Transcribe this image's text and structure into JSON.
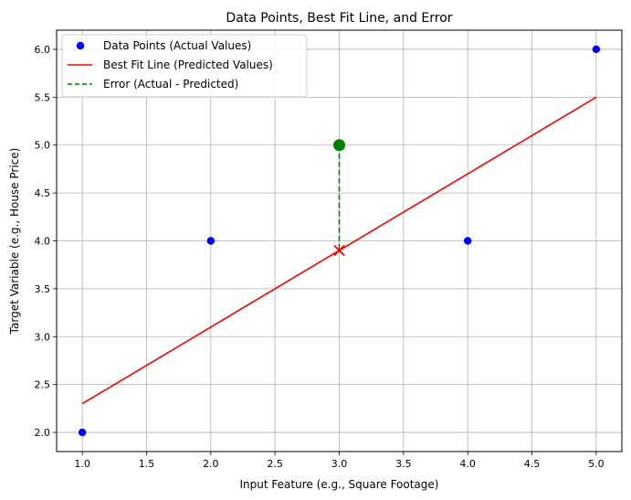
{
  "chart_data": {
    "type": "scatter",
    "title": "Data Points, Best Fit Line, and Error",
    "xlabel": "Input Feature (e.g., Square Footage)",
    "ylabel": "Target Variable (e.g., House Price)",
    "xlim": [
      0.8,
      5.2
    ],
    "ylim": [
      1.8,
      6.2
    ],
    "xticks": [
      "1.0",
      "1.5",
      "2.0",
      "2.5",
      "3.0",
      "3.5",
      "4.0",
      "4.5",
      "5.0"
    ],
    "yticks": [
      "2.0",
      "2.5",
      "3.0",
      "3.5",
      "4.0",
      "4.5",
      "5.0",
      "5.5",
      "6.0"
    ],
    "grid": true,
    "legend_position": "upper-left",
    "series": [
      {
        "name": "Data Points (Actual Values)",
        "kind": "scatter",
        "color": "#0000ff",
        "x": [
          1,
          2,
          4,
          5
        ],
        "y": [
          2,
          4,
          4,
          6
        ]
      },
      {
        "name": "Best Fit Line (Predicted Values)",
        "kind": "line",
        "color": "#ff0000",
        "x": [
          1,
          5
        ],
        "y": [
          2.3,
          5.5
        ]
      },
      {
        "name": "Error (Actual - Predicted)",
        "kind": "dashed-line",
        "color": "#008000",
        "x": [
          3,
          3
        ],
        "y": [
          5.0,
          3.9
        ]
      }
    ],
    "highlight": {
      "actual_point": {
        "x": 3,
        "y": 5.0,
        "color": "#008000"
      },
      "predicted_point": {
        "x": 3,
        "y": 3.9,
        "color": "#ff0000",
        "marker": "x"
      }
    }
  }
}
